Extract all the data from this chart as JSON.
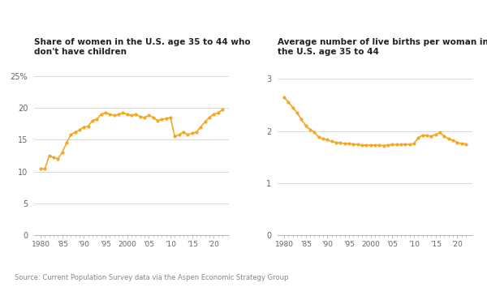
{
  "title1": "Share of women in the U.S. age 35 to 44 who\ndon't have children",
  "title2": "Average number of live births per woman in\nthe U.S. age 35 to 44",
  "source": "Source: Current Population Survey data via the Aspen Economic Strategy Group",
  "line_color": "#F5A623",
  "bg_color": "#FFFFFF",
  "chart1": {
    "years": [
      1980,
      1981,
      1982,
      1983,
      1984,
      1985,
      1986,
      1987,
      1988,
      1989,
      1990,
      1991,
      1992,
      1993,
      1994,
      1995,
      1996,
      1997,
      1998,
      1999,
      2000,
      2001,
      2002,
      2003,
      2004,
      2005,
      2006,
      2007,
      2008,
      2009,
      2010,
      2011,
      2012,
      2013,
      2014,
      2015,
      2016,
      2017,
      2018,
      2019,
      2020,
      2021,
      2022
    ],
    "values": [
      10.5,
      10.4,
      12.5,
      12.2,
      12.0,
      13.0,
      14.5,
      15.8,
      16.2,
      16.5,
      17.0,
      17.1,
      18.0,
      18.2,
      19.0,
      19.2,
      19.0,
      18.8,
      19.0,
      19.2,
      19.0,
      18.8,
      19.0,
      18.6,
      18.5,
      18.8,
      18.5,
      18.0,
      18.2,
      18.3,
      18.5,
      15.5,
      15.8,
      16.2,
      15.8,
      16.0,
      16.2,
      17.0,
      17.8,
      18.5,
      19.0,
      19.2,
      19.7
    ],
    "ylim": [
      0,
      27
    ],
    "yticks": [
      0,
      5,
      10,
      15,
      20,
      25
    ],
    "ytick_labels": [
      "0",
      "5",
      "10",
      "15",
      "20",
      "25%"
    ],
    "xticks": [
      1980,
      1985,
      1990,
      1995,
      2000,
      2005,
      2010,
      2015,
      2020
    ],
    "xtick_labels": [
      "1980",
      "'85",
      "'90",
      "'95",
      "2000",
      "'05",
      "'10",
      "'15",
      "'20"
    ]
  },
  "chart2": {
    "years": [
      1980,
      1981,
      1982,
      1983,
      1984,
      1985,
      1986,
      1987,
      1988,
      1989,
      1990,
      1991,
      1992,
      1993,
      1994,
      1995,
      1996,
      1997,
      1998,
      1999,
      2000,
      2001,
      2002,
      2003,
      2004,
      2005,
      2006,
      2007,
      2008,
      2009,
      2010,
      2011,
      2012,
      2013,
      2014,
      2015,
      2016,
      2017,
      2018,
      2019,
      2020,
      2021,
      2022
    ],
    "values": [
      2.65,
      2.55,
      2.45,
      2.35,
      2.22,
      2.1,
      2.03,
      1.98,
      1.88,
      1.85,
      1.83,
      1.8,
      1.78,
      1.77,
      1.76,
      1.76,
      1.75,
      1.74,
      1.73,
      1.73,
      1.73,
      1.73,
      1.73,
      1.72,
      1.73,
      1.74,
      1.74,
      1.74,
      1.75,
      1.74,
      1.76,
      1.87,
      1.92,
      1.91,
      1.9,
      1.93,
      1.97,
      1.9,
      1.85,
      1.82,
      1.78,
      1.76,
      1.75
    ],
    "ylim": [
      0,
      3.3
    ],
    "yticks": [
      0,
      1,
      2,
      3
    ],
    "ytick_labels": [
      "0",
      "1",
      "2",
      "3"
    ],
    "xticks": [
      1980,
      1985,
      1990,
      1995,
      2000,
      2005,
      2010,
      2015,
      2020
    ],
    "xtick_labels": [
      "1980",
      "'85",
      "'90",
      "'95",
      "2000",
      "'05",
      "'10",
      "'15",
      "'20"
    ]
  }
}
